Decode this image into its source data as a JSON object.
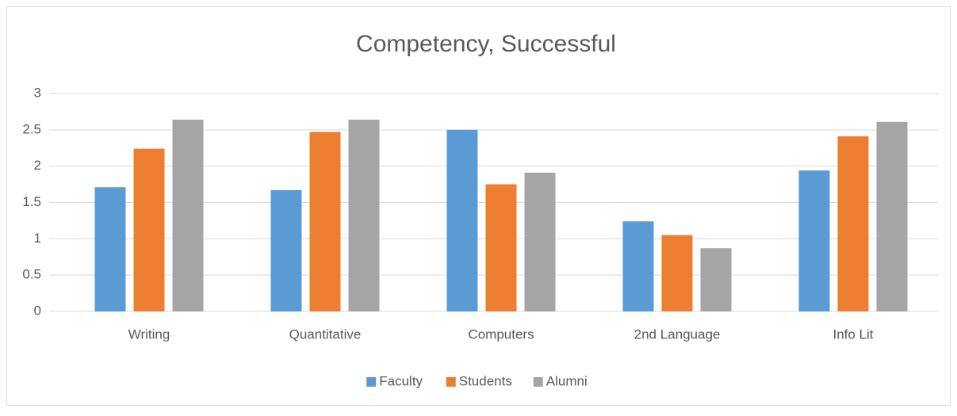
{
  "chart_data": {
    "type": "bar",
    "title": "Competency, Successful",
    "categories": [
      "Writing",
      "Quantitative",
      "Computers",
      "2nd Language",
      "Info Lit"
    ],
    "series": [
      {
        "name": "Faculty",
        "color": "#5b9bd5",
        "values": [
          1.71,
          1.67,
          2.5,
          1.24,
          1.94
        ]
      },
      {
        "name": "Students",
        "color": "#ed7d31",
        "values": [
          2.24,
          2.47,
          1.75,
          1.05,
          2.41
        ]
      },
      {
        "name": "Alumni",
        "color": "#a5a5a5",
        "values": [
          2.64,
          2.64,
          1.91,
          0.87,
          2.61
        ]
      }
    ],
    "ylim": [
      0,
      3
    ],
    "yticks": [
      0,
      0.5,
      1,
      1.5,
      2,
      2.5,
      3
    ],
    "grid": true,
    "legend": "bottom"
  }
}
